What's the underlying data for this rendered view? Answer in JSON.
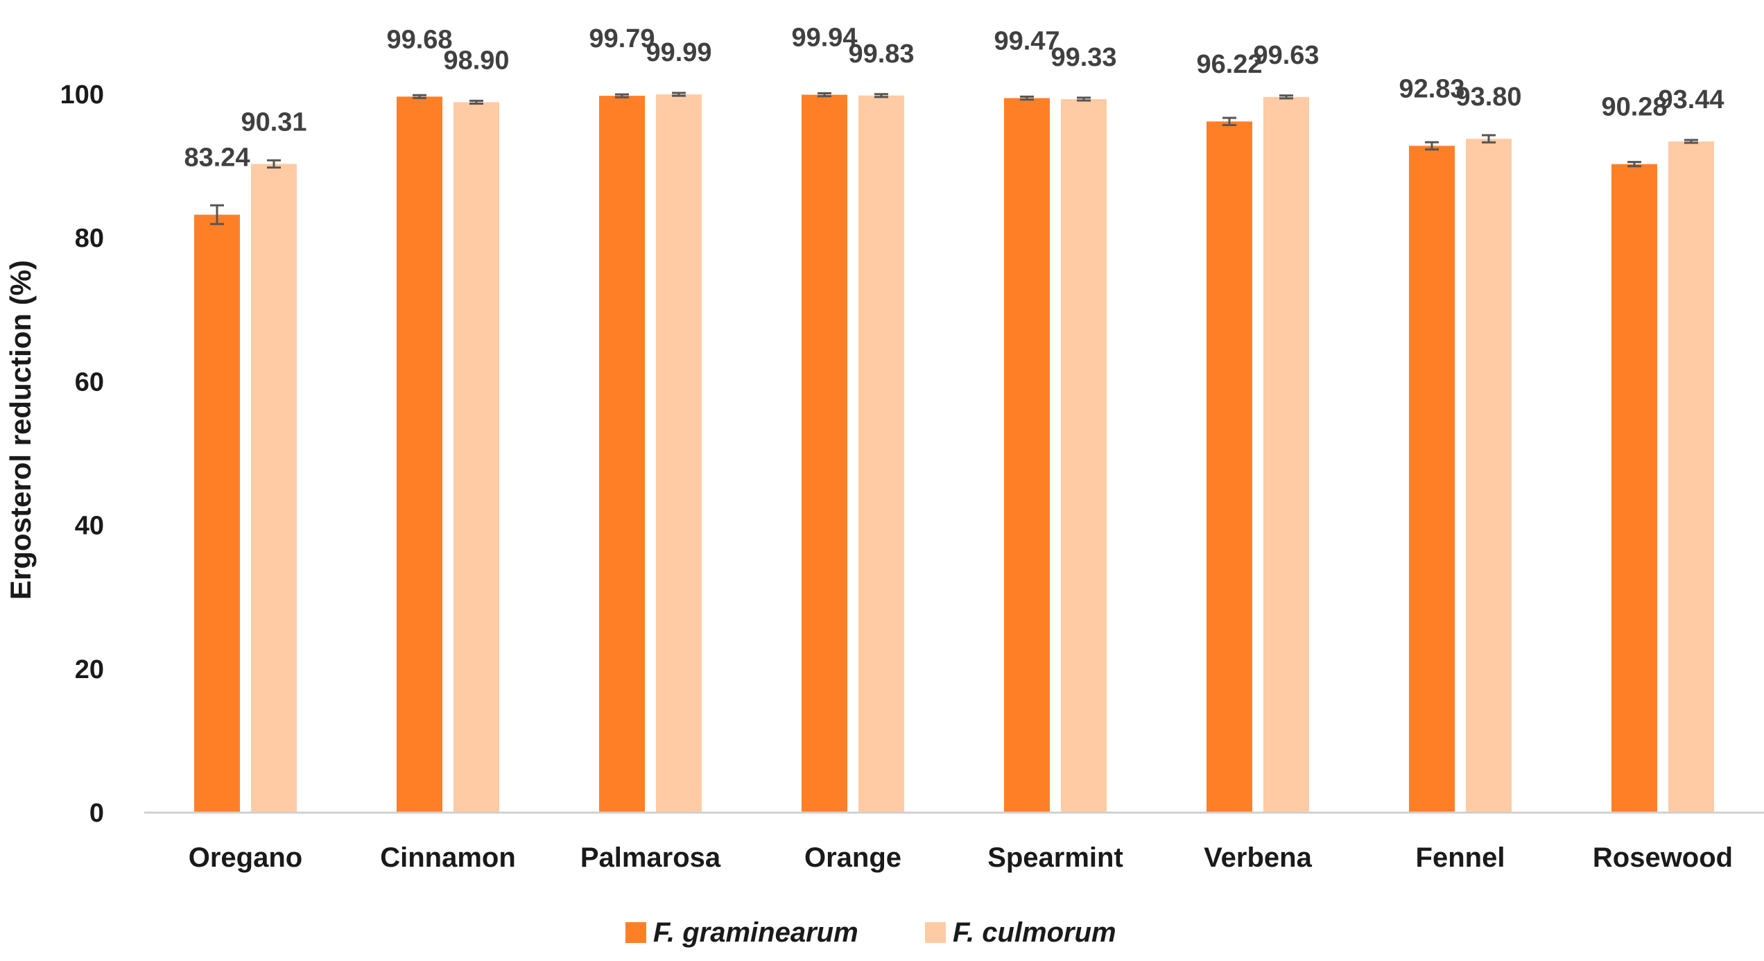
{
  "chart_data": {
    "type": "bar",
    "title": "",
    "xlabel": "",
    "ylabel": "Ergosterol reduction (%)",
    "ylim": [
      0,
      100
    ],
    "yticks": [
      0,
      20,
      40,
      60,
      80,
      100
    ],
    "grid": false,
    "legend_position": "bottom",
    "categories": [
      "Oregano",
      "Cinnamon",
      "Palmarosa",
      "Orange",
      "Spearmint",
      "Verbena",
      "Fennel",
      "Rosewood"
    ],
    "series": [
      {
        "name": "F. graminearum",
        "color": "#FF7F27",
        "values": [
          83.24,
          99.68,
          99.79,
          99.94,
          99.47,
          96.22,
          92.83,
          90.28
        ],
        "labels": [
          "83.24",
          "99.68",
          "99.79",
          "99.94",
          "99.47",
          "96.22",
          "92.83",
          "90.28"
        ],
        "errors": [
          1.3,
          0.2,
          0.2,
          0.2,
          0.2,
          0.5,
          0.5,
          0.3
        ]
      },
      {
        "name": "F. culmorum",
        "color": "#FFCBA4",
        "values": [
          90.31,
          98.9,
          99.99,
          99.83,
          99.33,
          99.63,
          93.8,
          93.44
        ],
        "labels": [
          "90.31",
          "98.90",
          "99.99",
          "99.83",
          "99.33",
          "99.63",
          "93.80",
          "93.44"
        ],
        "errors": [
          0.5,
          0.2,
          0.2,
          0.2,
          0.2,
          0.2,
          0.5,
          0.2
        ]
      }
    ]
  }
}
